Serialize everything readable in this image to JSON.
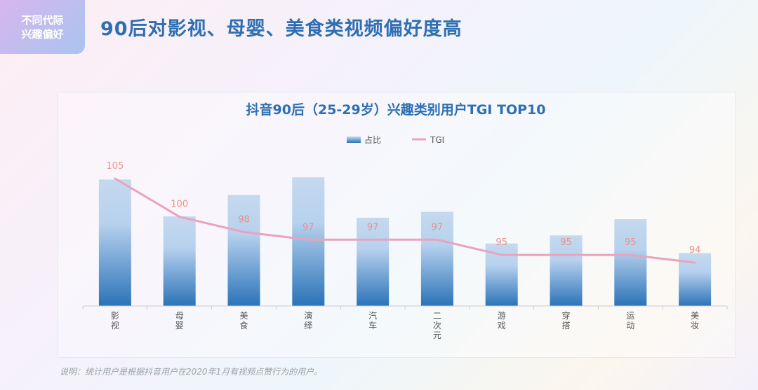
{
  "badge": {
    "line1": "不同代际",
    "line2": "兴趣偏好"
  },
  "headline": "90后对影视、母婴、美食类视频偏好度高",
  "chart_data": {
    "type": "bar",
    "title": "抖音90后（25-29岁）兴趣类别用户TGI TOP10",
    "categories": [
      "影视",
      "母婴",
      "美食",
      "演绎",
      "汽车",
      "二次元",
      "游戏",
      "穿搭",
      "运动",
      "美妆"
    ],
    "category_lines": [
      [
        "影",
        "视"
      ],
      [
        "母",
        "婴"
      ],
      [
        "美",
        "食"
      ],
      [
        "演",
        "绎"
      ],
      [
        "汽",
        "车"
      ],
      [
        "二",
        "次",
        "元"
      ],
      [
        "游",
        "戏"
      ],
      [
        "穿",
        "搭"
      ],
      [
        "运",
        "动"
      ],
      [
        "美",
        "妆"
      ]
    ],
    "series": [
      {
        "name": "占比",
        "type": "bar",
        "values": [
          0.86,
          0.61,
          0.755,
          0.875,
          0.6,
          0.64,
          0.425,
          0.48,
          0.59,
          0.36
        ]
      },
      {
        "name": "TGI",
        "type": "line",
        "values": [
          105,
          100,
          98,
          97,
          97,
          97,
          95,
          95,
          95,
          94
        ],
        "labels": [
          "105",
          "100",
          "98",
          "97",
          "97",
          "97",
          "95",
          "95",
          "95",
          "94"
        ]
      }
    ],
    "legend_position": "top-center",
    "grid": false,
    "colors": {
      "bar_top": "#c5d9ee",
      "bar_bottom": "#2b73b8",
      "line": "#e9a3be",
      "line_label": "#ee8f87",
      "title": "#2d6fb2"
    }
  },
  "footnote": "说明：统计用户是根据抖音用户在2020年1月有视频点赞行为的用户。"
}
